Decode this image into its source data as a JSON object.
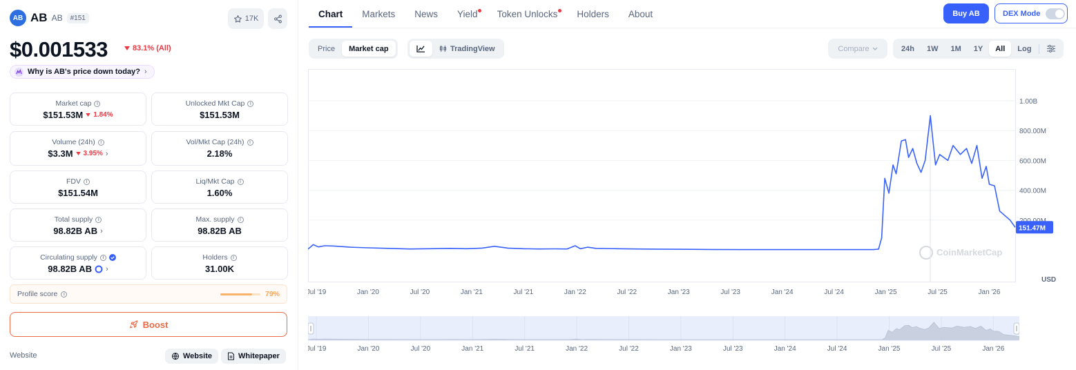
{
  "coin": {
    "logo_text": "AB",
    "name": "AB",
    "symbol": "AB",
    "rank": "#151",
    "favorites": "17K",
    "price": "$0.001533",
    "price_change": "83.1% (All)",
    "why_text": "Why is AB's price down today?"
  },
  "stats": [
    {
      "label": "Market cap",
      "value": "$151.53M",
      "change": "1.84%"
    },
    {
      "label": "Unlocked Mkt Cap",
      "value": "$151.53M"
    },
    {
      "label": "Volume (24h)",
      "value": "$3.3M",
      "change": "3.95%"
    },
    {
      "label": "Vol/Mkt Cap (24h)",
      "value": "2.18%"
    },
    {
      "label": "FDV",
      "value": "$151.54M"
    },
    {
      "label": "Liq/Mkt Cap",
      "value": "1.60%"
    },
    {
      "label": "Total supply",
      "value": "98.82B AB"
    },
    {
      "label": "Max. supply",
      "value": "98.82B AB"
    },
    {
      "label": "Circulating supply",
      "value": "98.82B AB"
    },
    {
      "label": "Holders",
      "value": "31.00K"
    }
  ],
  "profile": {
    "label": "Profile score",
    "percent": "79%",
    "fill": 0.79
  },
  "boost_label": "Boost",
  "links": {
    "label": "Website",
    "website": "Website",
    "whitepaper": "Whitepaper"
  },
  "tabs": [
    {
      "label": "Chart",
      "active": true,
      "dot": false
    },
    {
      "label": "Markets",
      "active": false,
      "dot": false
    },
    {
      "label": "News",
      "active": false,
      "dot": false
    },
    {
      "label": "Yield",
      "active": false,
      "dot": true
    },
    {
      "label": "Token Unlocks",
      "active": false,
      "dot": true
    },
    {
      "label": "Holders",
      "active": false,
      "dot": false
    },
    {
      "label": "About",
      "active": false,
      "dot": false
    }
  ],
  "header_buttons": {
    "buy": "Buy AB",
    "dex": "DEX Mode"
  },
  "controls": {
    "price": "Price",
    "market_cap": "Market cap",
    "tradingview": "TradingView",
    "compare": "Compare",
    "ranges": [
      "24h",
      "1W",
      "1M",
      "1Y",
      "All",
      "Log"
    ],
    "active_range": "All"
  },
  "chart_data": {
    "type": "line",
    "x_ticks": [
      "Jul '19",
      "Jan '20",
      "Jul '20",
      "Jan '21",
      "Jul '21",
      "Jan '22",
      "Jul '22",
      "Jan '23",
      "Jul '23",
      "Jan '24",
      "Jul '24",
      "Jan '25",
      "Jul '25",
      "Jan '26"
    ],
    "y_ticks": [
      "1.00B",
      "800.00M",
      "600.00M",
      "400.00M",
      "200.00M"
    ],
    "y_tick_values": [
      1000,
      800,
      600,
      400,
      200
    ],
    "ylim": [
      -200,
      1050
    ],
    "y_unit_label": "USD",
    "current_value_label": "151.47M",
    "watermark": "CoinMarketCap",
    "series": [
      {
        "values": [
          [
            2019.42,
            5
          ],
          [
            2019.47,
            35
          ],
          [
            2019.52,
            20
          ],
          [
            2019.58,
            28
          ],
          [
            2019.67,
            26
          ],
          [
            2019.83,
            18
          ],
          [
            2020.0,
            14
          ],
          [
            2020.2,
            10
          ],
          [
            2020.4,
            6
          ],
          [
            2020.6,
            8
          ],
          [
            2020.8,
            10
          ],
          [
            2020.95,
            8
          ],
          [
            2021.1,
            12
          ],
          [
            2021.22,
            24
          ],
          [
            2021.35,
            12
          ],
          [
            2021.5,
            8
          ],
          [
            2021.65,
            6
          ],
          [
            2021.8,
            7
          ],
          [
            2021.92,
            6
          ],
          [
            2022.0,
            28
          ],
          [
            2022.05,
            8
          ],
          [
            2022.12,
            18
          ],
          [
            2022.2,
            10
          ],
          [
            2022.4,
            8
          ],
          [
            2022.6,
            6
          ],
          [
            2022.8,
            5
          ],
          [
            2023.0,
            4
          ],
          [
            2023.3,
            3
          ],
          [
            2023.6,
            2
          ],
          [
            2023.9,
            2
          ],
          [
            2024.2,
            2
          ],
          [
            2024.5,
            2
          ],
          [
            2024.75,
            2
          ],
          [
            2024.88,
            2
          ],
          [
            2024.93,
            5
          ],
          [
            2024.96,
            80
          ],
          [
            2024.99,
            480
          ],
          [
            2025.03,
            380
          ],
          [
            2025.07,
            570
          ],
          [
            2025.1,
            510
          ],
          [
            2025.15,
            730
          ],
          [
            2025.19,
            740
          ],
          [
            2025.22,
            620
          ],
          [
            2025.26,
            680
          ],
          [
            2025.3,
            580
          ],
          [
            2025.34,
            520
          ],
          [
            2025.38,
            600
          ],
          [
            2025.43,
            900
          ],
          [
            2025.46,
            700
          ],
          [
            2025.48,
            570
          ],
          [
            2025.52,
            640
          ],
          [
            2025.6,
            600
          ],
          [
            2025.65,
            700
          ],
          [
            2025.72,
            640
          ],
          [
            2025.78,
            680
          ],
          [
            2025.83,
            580
          ],
          [
            2025.88,
            700
          ],
          [
            2025.93,
            480
          ],
          [
            2025.97,
            560
          ],
          [
            2026.0,
            440
          ],
          [
            2026.05,
            430
          ],
          [
            2026.1,
            260
          ],
          [
            2026.2,
            200
          ],
          [
            2026.25,
            151.47
          ]
        ]
      }
    ]
  },
  "colors": {
    "accent": "#3861fb",
    "down": "#ea3943",
    "line": "#3861fb",
    "boost": "#ea6a46"
  }
}
